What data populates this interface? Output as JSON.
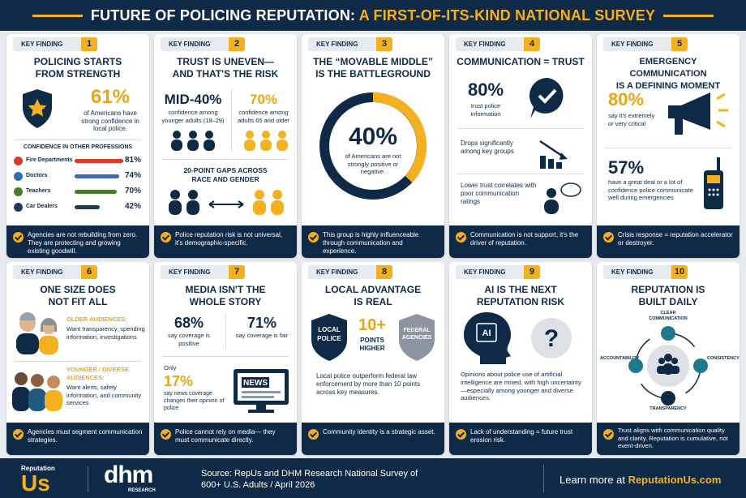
{
  "header": {
    "title": "FUTURE OF POLICING REPUTATION:",
    "title_accent": "A FIRST-OF-ITS-KIND NATIONAL SURVEY"
  },
  "cards": [
    {
      "tag": "KEY FINDING",
      "number": "1",
      "title": [
        "POLICING STARTS",
        "FROM STRENGTH"
      ],
      "stat": "61%",
      "stat_text": "of Americans have strong confidence in local police.",
      "section": "CONFIDENCE IN OTHER PROFESSIONS",
      "professions": {
        "categories": [
          "Fire Departments",
          "Doctors",
          "Teachers",
          "Car Dealers"
        ],
        "values": [
          81,
          74,
          70,
          42
        ],
        "value_labels": [
          "81%",
          "74%",
          "70%",
          "42%"
        ],
        "colors": [
          "#d93a2b",
          "#2f6db5",
          "#4a7a2c",
          "#1f3a5f"
        ]
      },
      "takeaway": "Agencies are not rebuilding from zero. They are protecting and growing existing goodwill."
    },
    {
      "tag": "KEY FINDING",
      "number": "2",
      "title": [
        "TRUST IS UNEVEN—",
        "AND THAT'S THE RISK"
      ],
      "left_stat": "MID-40%",
      "left_text": "confidence among younger adults (18–29)",
      "right_stat": "70%",
      "right_text": "confidence among adults 65 and older",
      "gaps": "20-POINT GAPS ACROSS RACE AND GENDER",
      "takeaway": "Police reputation risk is not universal, it's demographic-specific."
    },
    {
      "tag": "KEY FINDING",
      "number": "3",
      "title": [
        "THE “MOVABLE MIDDLE”",
        "IS THE BATTLEGROUND"
      ],
      "stat": "40%",
      "stat_text": "of Americans are not strongly positive or negative.",
      "takeaway": "This group is highly influenceable through communication and experience."
    },
    {
      "tag": "KEY FINDING",
      "number": "4",
      "title": [
        "COMMUNICATION = TRUST"
      ],
      "stat": "80%",
      "stat_text": "trust police information",
      "point_1": "Drops significantly among key groups",
      "point_2": "Lower trust correlates with poor communication ratings",
      "takeaway": "Communication is not support, it's the driver of reputation."
    },
    {
      "tag": "KEY FINDING",
      "number": "5",
      "title": [
        "EMERGENCY COMMUNICATION",
        "IS A DEFINING MOMENT"
      ],
      "stat_1": "80%",
      "stat_1_text": "say it's extremely or very critical",
      "stat_2": "57%",
      "stat_2_text": "have a great deal or a lot of confidence police communicate well during emergencies",
      "takeaway": "Crisis response = reputation accelerator or destroyer."
    },
    {
      "tag": "KEY FINDING",
      "number": "6",
      "title": [
        "ONE SIZE DOES",
        "NOT FIT ALL"
      ],
      "older_label": "OLDER AUDIENCES:",
      "older_text": "Want transparency, spending information, investigations",
      "younger_label": "YOUNGER / DIVERSE AUDIENCES:",
      "younger_text": "Want alerts, safety information, and community services",
      "takeaway": "Agencies must segment communication strategies."
    },
    {
      "tag": "KEY FINDING",
      "number": "7",
      "title": [
        "MEDIA ISN'T THE",
        "WHOLE STORY"
      ],
      "stat_1": "68%",
      "stat_1_text": "say coverage is positive",
      "stat_2": "71%",
      "stat_2_text": "say coverage is fair",
      "only": "Only",
      "stat_3": "17%",
      "stat_3_text": "say news coverage changes their opinion of police",
      "news": "NEWS",
      "takeaway": "Police cannot rely on media— they must communicate directly."
    },
    {
      "tag": "KEY FINDING",
      "number": "8",
      "title": [
        "LOCAL ADVANTAGE",
        "IS REAL"
      ],
      "local_badge": "LOCAL POLICE",
      "stat": "10+",
      "stat_text": "POINTS HIGHER",
      "federal_badge": "FEDERAL AGENCIES",
      "body": "Local police outperform federal law enforcement by more than 10 points across key measures.",
      "takeaway": "Community identity is a strategic asset."
    },
    {
      "tag": "KEY FINDING",
      "number": "9",
      "title": [
        "AI IS THE NEXT",
        "REPUTATION RISK"
      ],
      "ai": "AI",
      "question": "?",
      "body": "Opinions about police use of artificial intelligence are mixed, with high uncertainty—especially among younger and diverse audiences.",
      "takeaway": "Lack of understanding = future trust erosion risk."
    },
    {
      "tag": "KEY FINDING",
      "number": "10",
      "title": [
        "REPUTATION IS",
        "BUILT DAILY"
      ],
      "cycle": [
        "CLEAR COMMUNICATION",
        "CONSISTENCY",
        "TRANSPARENCY",
        "ACCOUNTABILITY"
      ],
      "takeaway": "Trust aligns with communication quality and clarity. Reputation is cumulative, not event-driven."
    }
  ],
  "footer": {
    "logo_top": "Reputation",
    "logo_bottom": "Us",
    "partner": "dhm",
    "partner_sub": "RESEARCH",
    "source": "Source: RepUs and DHM Research National Survey of 600+ U.S. Adults / April 2026",
    "cta": "Learn more at",
    "url": "ReputationUs.com"
  }
}
